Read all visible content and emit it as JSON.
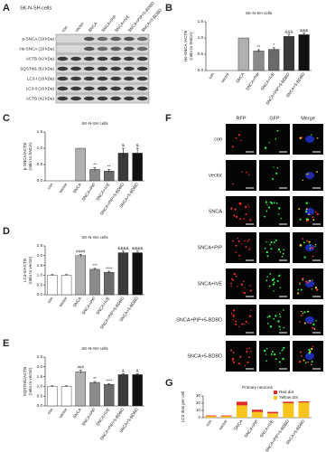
{
  "figure": {
    "panel_a": {
      "panel": "A",
      "title": "SK-N-SH cells",
      "lanes": [
        "con",
        "vector",
        "SNCA",
        "SNCA+PIP",
        "SNCA+IVE",
        "SNCA+PIP+5-BDBD",
        "SNCA+5-BDBD"
      ],
      "rows": [
        "p-SNCA (19 kDa)",
        "Hs-SNCA (19 kDa)",
        "ACTB (42 kDa)",
        "SQSTM1 (62 kDa)",
        "LC3-I (18 kDa)",
        "LC3-II (16 kDa)",
        "ACTB (42 kDa)"
      ]
    },
    "panel_f": {
      "panel": "F",
      "columns": [
        "RFP",
        "GFP",
        "Merge"
      ],
      "rows": [
        "con",
        "vector",
        "SNCA",
        "SNCA+PIP",
        "SNCA+IVE",
        "SNCA+PIP+5-BDBD",
        "SNCA+5-BDBD"
      ]
    }
  },
  "chart_data": [
    {
      "type": "bar",
      "panel": "B",
      "title": "SK-N-SH cells",
      "y_label": [
        "Hs-SNCA /ACTB",
        "(ratio to SNCA)"
      ],
      "categories": [
        "con",
        "vector",
        "SNCA",
        "SNCA+PIP",
        "SNCA+IVE",
        "SNCA+PIP+5-BDBD",
        "SNCA+5-BDBD"
      ],
      "values": [
        0,
        0,
        1.0,
        0.6,
        0.65,
        1.05,
        1.1
      ],
      "errors": [
        0,
        0,
        0,
        0.04,
        0.05,
        0.06,
        0.05
      ],
      "annotations": [
        null,
        null,
        null,
        "**",
        "*",
        "&&&",
        "&&&"
      ],
      "colors": [
        "#ffffff",
        "#ffffff",
        "#b0b0b0",
        "#8a8a8a",
        "#6a6a6a",
        "#3a3a3a",
        "#111111"
      ],
      "ylim": [
        0,
        1.5
      ],
      "yticks": [
        {
          "value": 0,
          "label": "0.0"
        },
        {
          "value": 0.5,
          "label": "0.5"
        },
        {
          "value": 1,
          "label": "1.0"
        },
        {
          "value": 1.5,
          "label": "1.5"
        }
      ]
    },
    {
      "type": "bar",
      "panel": "C",
      "title": "SK-N-SH cells",
      "y_label": [
        "p-SNCA/ACTB",
        "(ratio to SNCA)"
      ],
      "categories": [
        "con",
        "vector",
        "SNCA",
        "SNCA+PIP",
        "SNCA+IVE",
        "SNCA+PIP+5-BDBD",
        "SNCA+5-BDBD"
      ],
      "values": [
        0,
        0,
        1.0,
        0.35,
        0.3,
        0.85,
        0.85
      ],
      "errors": [
        0,
        0,
        0,
        0.06,
        0.05,
        0.15,
        0.15
      ],
      "annotations": [
        null,
        null,
        null,
        "**",
        "**",
        "&",
        "&"
      ],
      "colors": [
        "#ffffff",
        "#ffffff",
        "#b0b0b0",
        "#8a8a8a",
        "#6a6a6a",
        "#3a3a3a",
        "#111111"
      ],
      "ylim": [
        0,
        1.5
      ],
      "yticks": [
        {
          "value": 0,
          "label": "0.0"
        },
        {
          "value": 0.5,
          "label": "0.5"
        },
        {
          "value": 1,
          "label": "1.0"
        },
        {
          "value": 1.5,
          "label": "1.5"
        }
      ]
    },
    {
      "type": "bar",
      "panel": "D",
      "title": "SK-N-SH cells",
      "y_label": [
        "LC3-II/ACTB",
        "(ratio to vector)"
      ],
      "categories": [
        "con",
        "vector",
        "SNCA",
        "SNCA+PIP",
        "SNCA+IVE",
        "SNCA+PIP+5-BDBD",
        "SNCA+5-BDBD"
      ],
      "values": [
        1.0,
        1.0,
        2.0,
        1.3,
        1.15,
        2.15,
        2.15
      ],
      "errors": [
        0.03,
        0.03,
        0.06,
        0.05,
        0.05,
        0.08,
        0.08
      ],
      "annotations": [
        null,
        null,
        "####",
        "***",
        "****",
        "&&&&",
        "&&&&"
      ],
      "colors": [
        "#ffffff",
        "#ffffff",
        "#b0b0b0",
        "#8a8a8a",
        "#6a6a6a",
        "#3a3a3a",
        "#111111"
      ],
      "ylim": [
        0,
        2.5
      ],
      "yticks": [
        {
          "value": 0,
          "label": "0.0"
        },
        {
          "value": 0.5,
          "label": "0.5"
        },
        {
          "value": 1,
          "label": "1.0"
        },
        {
          "value": 1.5,
          "label": "1.5"
        },
        {
          "value": 2,
          "label": "2.0"
        },
        {
          "value": 2.5,
          "label": "2.5"
        }
      ]
    },
    {
      "type": "bar",
      "panel": "E",
      "title": "SK-N-SH cells",
      "y_label": [
        "SQSTM1/ACTB",
        "(ratio to vector)"
      ],
      "categories": [
        "con",
        "vector",
        "SNCA",
        "SNCA+PIP",
        "SNCA+IVE",
        "SNCA+PIP+5-BDBD",
        "SNCA+5-BDBD"
      ],
      "values": [
        1.0,
        1.0,
        1.75,
        1.2,
        1.1,
        1.6,
        1.6
      ],
      "errors": [
        0.03,
        0.03,
        0.08,
        0.05,
        0.04,
        0.05,
        0.05
      ],
      "annotations": [
        null,
        null,
        "###",
        "**",
        "****",
        "&",
        "&"
      ],
      "colors": [
        "#ffffff",
        "#ffffff",
        "#b0b0b0",
        "#8a8a8a",
        "#6a6a6a",
        "#3a3a3a",
        "#111111"
      ],
      "ylim": [
        0,
        2.5
      ],
      "yticks": [
        {
          "value": 0,
          "label": "0.0"
        },
        {
          "value": 0.5,
          "label": "0.5"
        },
        {
          "value": 1,
          "label": "1.0"
        },
        {
          "value": 1.5,
          "label": "1.5"
        },
        {
          "value": 2,
          "label": "2.0"
        },
        {
          "value": 2.5,
          "label": "2.5"
        }
      ]
    },
    {
      "type": "stacked_bar",
      "panel": "G",
      "title": "Primary neurons",
      "y_label": [
        "LC3 dots per cell"
      ],
      "categories": [
        "con",
        "vector",
        "SNCA",
        "SNCA+PIP",
        "SNCA+IVE",
        "SNCA+PIP+5-BDBD",
        "SNCA+5-BDBD"
      ],
      "series": [
        {
          "name": "Red dot",
          "color": "#e3282a",
          "values": [
            1,
            1,
            5,
            3,
            2,
            2,
            1.5
          ]
        },
        {
          "name": "Yellow dot",
          "color": "#f7c41b",
          "values": [
            2,
            2,
            17,
            8,
            6,
            20,
            21
          ]
        }
      ],
      "ylim": [
        0,
        30
      ],
      "yticks": [
        0,
        10,
        20,
        30
      ]
    }
  ]
}
